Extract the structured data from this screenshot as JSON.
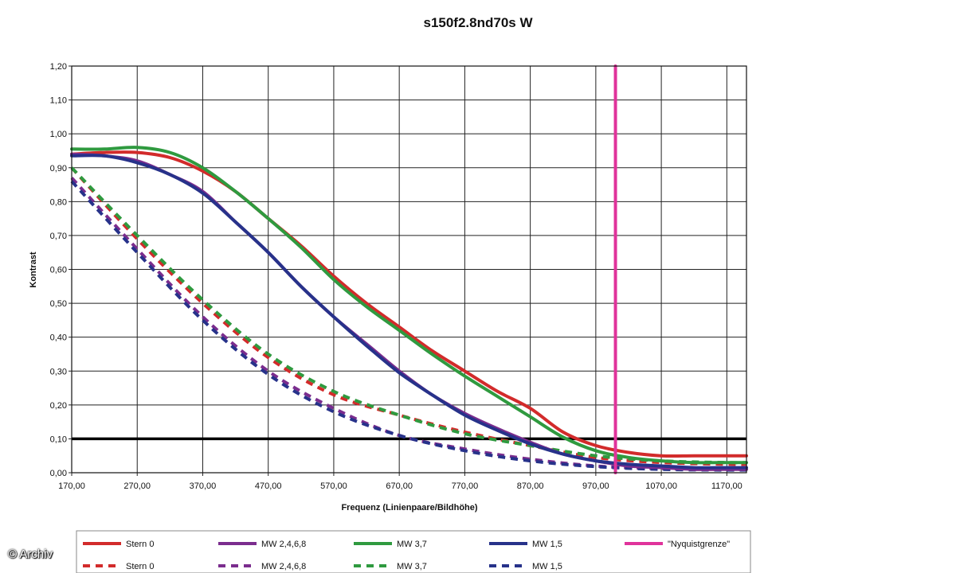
{
  "chart_data": {
    "type": "line",
    "title": "s150f2.8nd70s W",
    "xlabel": "Frequenz (Linienpaare/Bildhöhe)",
    "ylabel": "Kontrast",
    "xlim": [
      170,
      1200
    ],
    "ylim": [
      0,
      1.2
    ],
    "x_ticks": [
      "170,00",
      "270,00",
      "370,00",
      "470,00",
      "570,00",
      "670,00",
      "770,00",
      "870,00",
      "970,00",
      "1070,00",
      "1170,00"
    ],
    "y_ticks": [
      "0,00",
      "0,10",
      "0,20",
      "0,30",
      "0,40",
      "0,50",
      "0,60",
      "0,70",
      "0,80",
      "0,90",
      "1,00",
      "1,10",
      "1,20"
    ],
    "grid": true,
    "legend_position": "bottom",
    "reference_line_y": 0.1,
    "nyquist_x": 1000,
    "series": [
      {
        "name": "Stern 0",
        "color": "#d22b2b",
        "dashed": false,
        "x": [
          170,
          220,
          270,
          320,
          370,
          420,
          470,
          520,
          570,
          620,
          670,
          720,
          770,
          820,
          870,
          920,
          970,
          1020,
          1070,
          1120,
          1170,
          1200
        ],
        "y": [
          0.94,
          0.945,
          0.945,
          0.93,
          0.89,
          0.83,
          0.75,
          0.67,
          0.58,
          0.5,
          0.43,
          0.36,
          0.3,
          0.24,
          0.19,
          0.12,
          0.08,
          0.06,
          0.05,
          0.05,
          0.05,
          0.05
        ]
      },
      {
        "name": "MW 2,4,6,8",
        "color": "#7b2d8e",
        "dashed": false,
        "x": [
          170,
          220,
          270,
          320,
          370,
          420,
          470,
          520,
          570,
          620,
          670,
          720,
          770,
          820,
          870,
          920,
          970,
          1020,
          1070,
          1120,
          1170,
          1200
        ],
        "y": [
          0.94,
          0.935,
          0.92,
          0.88,
          0.83,
          0.74,
          0.65,
          0.55,
          0.46,
          0.38,
          0.3,
          0.23,
          0.175,
          0.13,
          0.09,
          0.055,
          0.035,
          0.02,
          0.015,
          0.01,
          0.01,
          0.01
        ]
      },
      {
        "name": "MW 3,7",
        "color": "#2f9a3f",
        "dashed": false,
        "x": [
          170,
          220,
          270,
          320,
          370,
          420,
          470,
          520,
          570,
          620,
          670,
          720,
          770,
          820,
          870,
          920,
          970,
          1020,
          1070,
          1120,
          1170,
          1200
        ],
        "y": [
          0.955,
          0.955,
          0.96,
          0.945,
          0.9,
          0.83,
          0.75,
          0.665,
          0.57,
          0.49,
          0.42,
          0.35,
          0.285,
          0.225,
          0.165,
          0.105,
          0.065,
          0.045,
          0.035,
          0.03,
          0.03,
          0.03
        ]
      },
      {
        "name": "MW 1,5",
        "color": "#27328a",
        "dashed": false,
        "x": [
          170,
          220,
          270,
          320,
          370,
          420,
          470,
          520,
          570,
          620,
          670,
          720,
          770,
          820,
          870,
          920,
          970,
          1020,
          1070,
          1120,
          1170,
          1200
        ],
        "y": [
          0.935,
          0.935,
          0.915,
          0.88,
          0.825,
          0.74,
          0.65,
          0.55,
          0.46,
          0.375,
          0.295,
          0.23,
          0.17,
          0.125,
          0.085,
          0.055,
          0.035,
          0.025,
          0.02,
          0.015,
          0.015,
          0.015
        ]
      },
      {
        "name": "\"Nyquistgrenze\"",
        "color": "#e0339b",
        "dashed": false,
        "x": [
          1000,
          1000
        ],
        "y": [
          0,
          1.2
        ]
      },
      {
        "name": "Stern 0",
        "color": "#d22b2b",
        "dashed": true,
        "x": [
          170,
          270,
          370,
          470,
          570,
          670,
          770,
          870,
          970,
          1070,
          1170,
          1200
        ],
        "y": [
          0.9,
          0.69,
          0.5,
          0.34,
          0.23,
          0.17,
          0.12,
          0.08,
          0.045,
          0.03,
          0.025,
          0.025
        ]
      },
      {
        "name": "MW 2,4,6,8",
        "color": "#7b2d8e",
        "dashed": true,
        "x": [
          170,
          270,
          370,
          470,
          570,
          670,
          770,
          870,
          970,
          1070,
          1170,
          1200
        ],
        "y": [
          0.87,
          0.66,
          0.46,
          0.3,
          0.19,
          0.11,
          0.07,
          0.04,
          0.02,
          0.012,
          0.01,
          0.01
        ]
      },
      {
        "name": "MW 3,7",
        "color": "#2f9a3f",
        "dashed": true,
        "x": [
          170,
          270,
          370,
          470,
          570,
          670,
          770,
          870,
          970,
          1070,
          1170,
          1200
        ],
        "y": [
          0.9,
          0.7,
          0.51,
          0.35,
          0.24,
          0.17,
          0.115,
          0.08,
          0.05,
          0.035,
          0.03,
          0.03
        ]
      },
      {
        "name": "MW 1,5",
        "color": "#27328a",
        "dashed": true,
        "x": [
          170,
          270,
          370,
          470,
          570,
          670,
          770,
          870,
          970,
          1070,
          1170,
          1200
        ],
        "y": [
          0.86,
          0.65,
          0.45,
          0.29,
          0.18,
          0.11,
          0.065,
          0.035,
          0.018,
          0.01,
          0.008,
          0.008
        ]
      }
    ]
  },
  "legend": {
    "row1": [
      "Stern 0",
      "MW 2,4,6,8",
      "MW 3,7",
      "MW 1,5",
      "\"Nyquistgrenze\""
    ],
    "row2": [
      "Stern 0",
      "MW 2,4,6,8",
      "MW 3,7",
      "MW 1,5"
    ]
  },
  "watermark": "© Archiv"
}
